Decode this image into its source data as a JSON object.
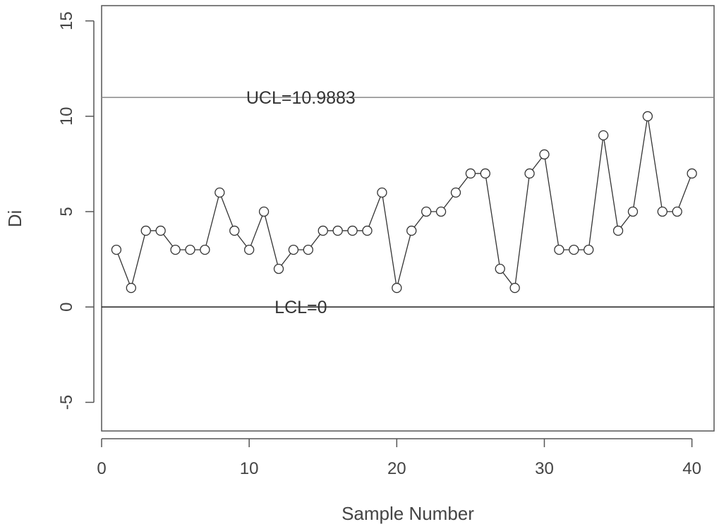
{
  "chart_data": {
    "type": "line",
    "title": "",
    "xlabel": "Sample Number",
    "ylabel": "Di",
    "xlim": [
      0,
      41.5
    ],
    "ylim": [
      -6.5,
      15.8
    ],
    "x_ticks": [
      0,
      10,
      20,
      30,
      40
    ],
    "y_ticks": [
      -5,
      0,
      5,
      10,
      15
    ],
    "grid": false,
    "marker": "open-circle",
    "series": [
      {
        "x": [
          1,
          2,
          3,
          4,
          5,
          6,
          7,
          8,
          9,
          10,
          11,
          12,
          13,
          14,
          15,
          16,
          17,
          18,
          19,
          20,
          21,
          22,
          23,
          24,
          25,
          26,
          27,
          28,
          29,
          30,
          31,
          32,
          33,
          34,
          35,
          36,
          37,
          38,
          39,
          40
        ],
        "values": [
          3,
          1,
          4,
          4,
          3,
          3,
          3,
          6,
          4,
          3,
          5,
          2,
          3,
          3,
          4,
          4,
          4,
          4,
          6,
          1,
          4,
          5,
          5,
          6,
          7,
          7,
          2,
          1,
          7,
          8,
          3,
          3,
          3,
          9,
          4,
          5,
          10,
          5,
          5,
          7
        ]
      }
    ],
    "reference_lines": [
      {
        "value": 10.9883,
        "label": "UCL=10.9883",
        "label_x": 13.5,
        "color": "#888888"
      },
      {
        "value": 0,
        "label": "LCL=0",
        "label_x": 13.5,
        "color": "#222222"
      }
    ],
    "colors": {
      "line": "#333333",
      "marker": "#333333",
      "frame": "#555555"
    }
  }
}
